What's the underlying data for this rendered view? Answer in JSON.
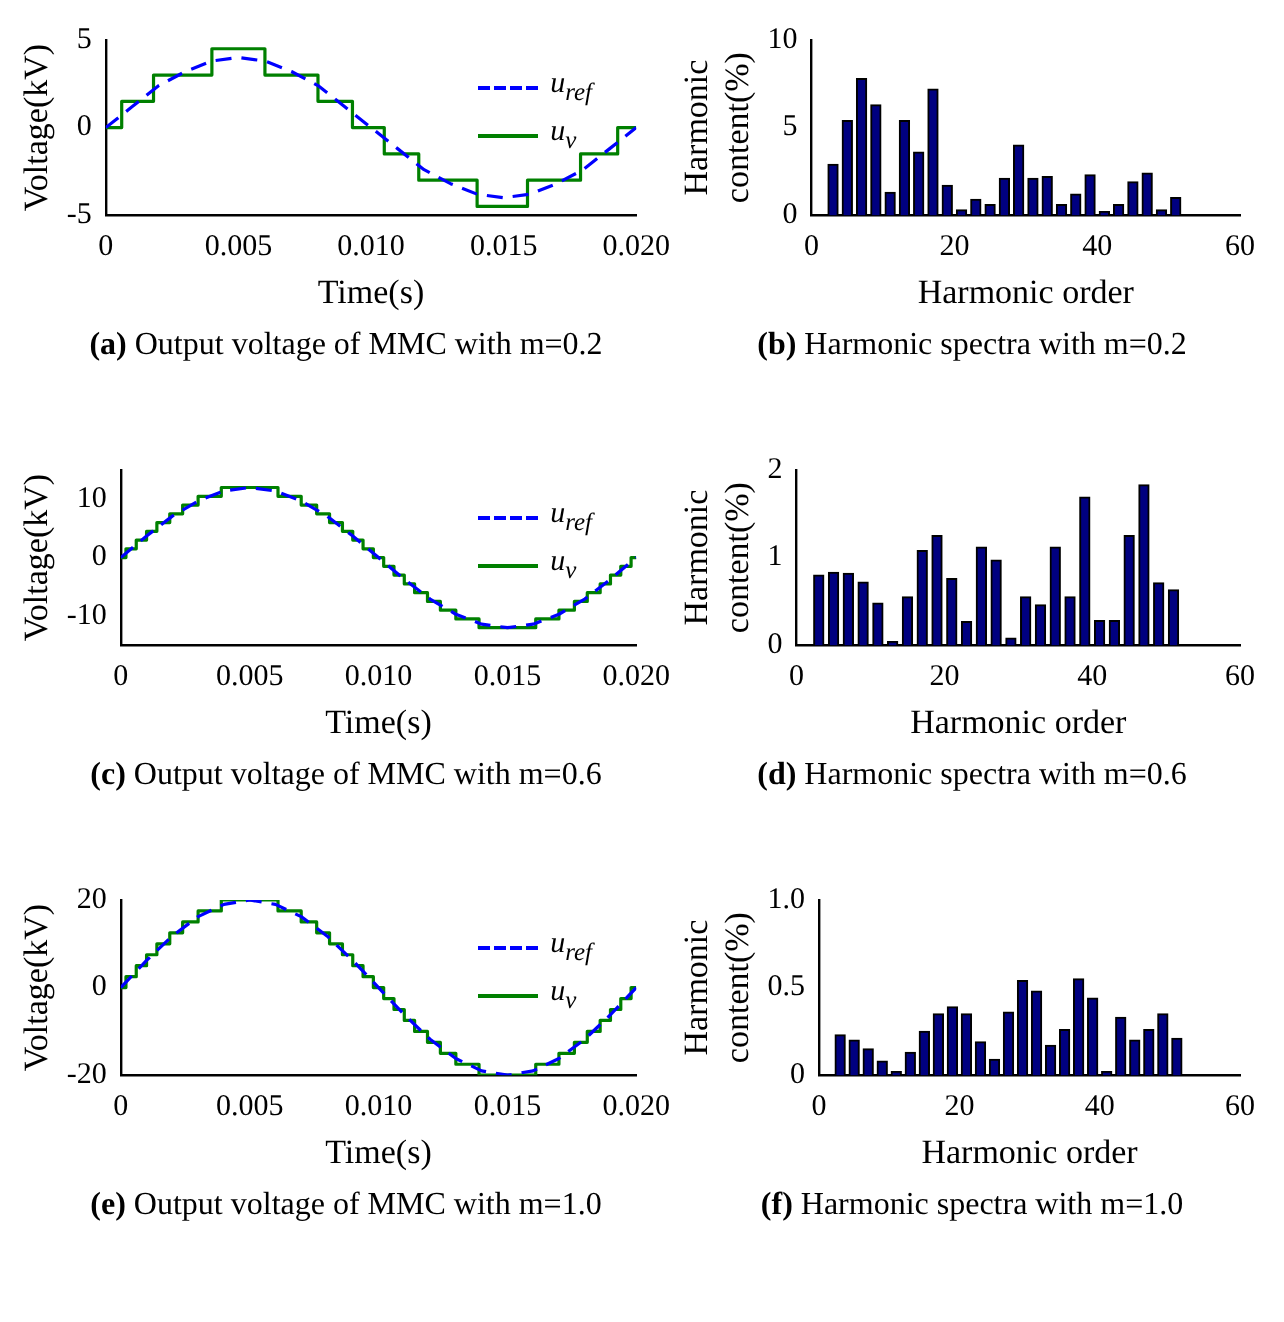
{
  "chart_data": [
    {
      "type": "line",
      "xlabel": "Time(s)",
      "ylabel": "Voltage(kV)",
      "annotations": [
        "(a) Output voltage of MMC with m=0.2"
      ],
      "xlim": [
        0,
        0.02
      ],
      "xticks": [
        0,
        0.005,
        {
          "value": 0.01,
          "label": "0.010"
        },
        {
          "value": 0.015,
          "label": "0.015"
        },
        {
          "value": 0.02,
          "label": "0.020"
        }
      ],
      "ylim": [
        -5,
        5
      ],
      "yticks": [
        -5,
        0,
        5
      ],
      "grid": false,
      "legend": "right",
      "series": [
        {
          "name": "u$_{ref}$",
          "color": "#0000ff",
          "line_style": "dashed",
          "x": [
            0,
            0.001,
            0.002,
            0.003,
            0.004,
            0.005,
            0.006,
            0.007,
            0.008,
            0.009,
            0.01,
            0.011,
            0.012,
            0.013,
            0.014,
            0.015,
            0.016,
            0.017,
            0.018,
            0.019,
            0.02
          ],
          "values": [
            0,
            1.2,
            2.4,
            3.2,
            3.8,
            4,
            3.8,
            3.2,
            2.4,
            1.2,
            0,
            -1.2,
            -2.4,
            -3.2,
            -3.8,
            -4,
            -3.8,
            -3.2,
            -2.4,
            -1.2,
            0
          ]
        },
        {
          "name": "u$_{v}$",
          "type": "step",
          "color": "#008000",
          "line_style": "solid",
          "x": [
            0,
            0.0006,
            0.0018,
            0.004,
            0.006,
            0.008,
            0.0093,
            0.0105,
            0.0118,
            0.014,
            0.0159,
            0.0179,
            0.0193,
            0.02
          ],
          "values": [
            0,
            1.5,
            3,
            4.5,
            3,
            1.5,
            0,
            -1.5,
            -3,
            -4.5,
            -3,
            -1.5,
            0,
            0
          ]
        }
      ]
    },
    {
      "type": "bar",
      "xlabel": "Harmonic order",
      "ylabel": "Harmonic content(%)",
      "annotations": [
        "(b) Harmonic spectra with m=0.2"
      ],
      "x": [
        3,
        5,
        7,
        9,
        11,
        13,
        15,
        17,
        19,
        21,
        23,
        25,
        27,
        29,
        31,
        33,
        35,
        37,
        39,
        41,
        43,
        45,
        47,
        49,
        51
      ],
      "values": [
        2.9,
        5.4,
        7.8,
        6.3,
        1.3,
        5.4,
        3.6,
        7.2,
        1.7,
        0.3,
        0.9,
        0.6,
        2.1,
        4.0,
        2.1,
        2.2,
        0.6,
        1.2,
        2.3,
        0.2,
        0.6,
        1.9,
        2.4,
        0.3,
        1.0
      ],
      "color": "#000080",
      "xlim": [
        0,
        60
      ],
      "xticks": [
        0,
        20,
        40,
        60
      ],
      "ylim": [
        0,
        10
      ],
      "yticks": [
        0,
        5,
        10
      ],
      "grid": false
    },
    {
      "type": "line",
      "xlabel": "Time(s)",
      "ylabel": "Voltage(kV)",
      "annotations": [
        "(c) Output voltage of MMC with m=0.6"
      ],
      "xlim": [
        0,
        0.02
      ],
      "xticks": [
        0,
        0.005,
        {
          "value": 0.01,
          "label": "0.010"
        },
        {
          "value": 0.015,
          "label": "0.015"
        },
        {
          "value": 0.02,
          "label": "0.020"
        }
      ],
      "ylim": [
        -15,
        15
      ],
      "yticks": [
        -10,
        0,
        10
      ],
      "grid": false,
      "legend": "right",
      "series": [
        {
          "name": "u$_{ref}$",
          "color": "#0000ff",
          "line_style": "dashed",
          "x": [
            0,
            0.001,
            0.002,
            0.003,
            0.004,
            0.005,
            0.006,
            0.007,
            0.008,
            0.009,
            0.01,
            0.011,
            0.012,
            0.013,
            0.014,
            0.015,
            0.016,
            0.017,
            0.018,
            0.019,
            0.02
          ],
          "values": [
            0,
            3.7,
            7.1,
            9.7,
            11.4,
            12,
            11.4,
            9.7,
            7.1,
            3.7,
            0,
            -3.7,
            -7.1,
            -9.7,
            -11.4,
            -12,
            -11.4,
            -9.7,
            -7.1,
            -3.7,
            0
          ]
        },
        {
          "name": "u$_{v}$",
          "type": "step",
          "color": "#008000",
          "line_style": "solid",
          "x": [
            0,
            0.0002,
            0.0006,
            0.001,
            0.0014,
            0.0019,
            0.0024,
            0.003,
            0.0039,
            0.0061,
            0.007,
            0.0076,
            0.0081,
            0.0086,
            0.009,
            0.0094,
            0.0098,
            0.0102,
            0.0106,
            0.011,
            0.0114,
            0.0119,
            0.0124,
            0.013,
            0.0139,
            0.0161,
            0.017,
            0.0176,
            0.0181,
            0.0186,
            0.019,
            0.0194,
            0.0198,
            0.02
          ],
          "values": [
            0,
            1.5,
            3,
            4.5,
            6,
            7.5,
            9,
            10.5,
            12,
            10.5,
            9,
            7.5,
            6,
            4.5,
            3,
            1.5,
            0,
            -1.5,
            -3,
            -4.5,
            -6,
            -7.5,
            -9,
            -10.5,
            -12,
            -10.5,
            -9,
            -7.5,
            -6,
            -4.5,
            -3,
            -1.5,
            0,
            0
          ]
        }
      ]
    },
    {
      "type": "bar",
      "xlabel": "Harmonic order",
      "ylabel": "Harmonic content(%)",
      "annotations": [
        "(d) Harmonic spectra with m=0.6"
      ],
      "x": [
        3,
        5,
        7,
        9,
        11,
        13,
        15,
        17,
        19,
        21,
        23,
        25,
        27,
        29,
        31,
        33,
        35,
        37,
        39,
        41,
        43,
        45,
        47,
        49,
        51
      ],
      "values": [
        0.8,
        0.83,
        0.82,
        0.72,
        0.48,
        0.04,
        0.55,
        1.08,
        1.25,
        0.76,
        0.27,
        1.12,
        0.97,
        0.08,
        0.55,
        0.46,
        1.12,
        0.55,
        1.69,
        0.28,
        0.28,
        1.25,
        1.83,
        0.71,
        0.63
      ],
      "color": "#000080",
      "xlim": [
        0,
        60
      ],
      "xticks": [
        0,
        20,
        40,
        60
      ],
      "ylim": [
        0,
        2
      ],
      "yticks": [
        0,
        1,
        2
      ],
      "grid": false
    },
    {
      "type": "line",
      "xlabel": "Time(s)",
      "ylabel": "Voltage(kV)",
      "annotations": [
        "(e) Output voltage of MMC with m=1.0"
      ],
      "xlim": [
        0,
        0.02
      ],
      "xticks": [
        0,
        0.005,
        {
          "value": 0.01,
          "label": "0.010"
        },
        {
          "value": 0.015,
          "label": "0.015"
        },
        {
          "value": 0.02,
          "label": "0.020"
        }
      ],
      "ylim": [
        -20,
        20
      ],
      "yticks": [
        -20,
        0,
        20
      ],
      "grid": false,
      "legend": "right",
      "series": [
        {
          "name": "u$_{ref}$",
          "color": "#0000ff",
          "line_style": "dashed",
          "x": [
            0,
            0.001,
            0.002,
            0.003,
            0.004,
            0.005,
            0.006,
            0.007,
            0.008,
            0.009,
            0.01,
            0.011,
            0.012,
            0.013,
            0.014,
            0.015,
            0.016,
            0.017,
            0.018,
            0.019,
            0.02
          ],
          "values": [
            0,
            6.2,
            11.8,
            16.2,
            19,
            20,
            19,
            16.2,
            11.8,
            6.2,
            0,
            -6.2,
            -11.8,
            -16.2,
            -19,
            -20,
            -19,
            -16.2,
            -11.8,
            -6.2,
            0
          ]
        },
        {
          "name": "u$_{v}$",
          "type": "step",
          "color": "#008000",
          "line_style": "solid",
          "x": [
            0,
            0.0002,
            0.0006,
            0.001,
            0.0014,
            0.0019,
            0.0024,
            0.003,
            0.0039,
            0.0061,
            0.007,
            0.0076,
            0.0081,
            0.0086,
            0.009,
            0.0094,
            0.0098,
            0.0102,
            0.0106,
            0.011,
            0.0114,
            0.0119,
            0.0124,
            0.013,
            0.0139,
            0.0161,
            0.017,
            0.0176,
            0.0181,
            0.0186,
            0.019,
            0.0194,
            0.0198,
            0.02
          ],
          "values": [
            0,
            2.5,
            5,
            7.5,
            10,
            12.5,
            15,
            17.5,
            20,
            17.5,
            15,
            12.5,
            10,
            7.5,
            5,
            2.5,
            0,
            -2.5,
            -5,
            -7.5,
            -10,
            -12.5,
            -15,
            -17.5,
            -20,
            -17.5,
            -15,
            -12.5,
            -10,
            -7.5,
            -5,
            -2.5,
            0,
            0
          ]
        }
      ]
    },
    {
      "type": "bar",
      "xlabel": "Harmonic order",
      "ylabel": "Harmonic content(%)",
      "annotations": [
        "(f) Harmonic spectra with m=1.0"
      ],
      "x": [
        3,
        5,
        7,
        9,
        11,
        13,
        15,
        17,
        19,
        21,
        23,
        25,
        27,
        29,
        31,
        33,
        35,
        37,
        39,
        41,
        43,
        45,
        47,
        49,
        51
      ],
      "values": [
        0.23,
        0.2,
        0.15,
        0.08,
        0.02,
        0.13,
        0.25,
        0.35,
        0.39,
        0.35,
        0.19,
        0.09,
        0.36,
        0.54,
        0.48,
        0.17,
        0.26,
        0.55,
        0.44,
        0.02,
        0.33,
        0.2,
        0.26,
        0.35,
        0.21
      ],
      "color": "#000080",
      "xlim": [
        0,
        60
      ],
      "xticks": [
        0,
        20,
        40,
        60
      ],
      "ylim": [
        0,
        1
      ],
      "yticks": [
        0,
        0.5,
        {
          "value": 1,
          "label": "1.0"
        }
      ],
      "grid": false
    }
  ]
}
